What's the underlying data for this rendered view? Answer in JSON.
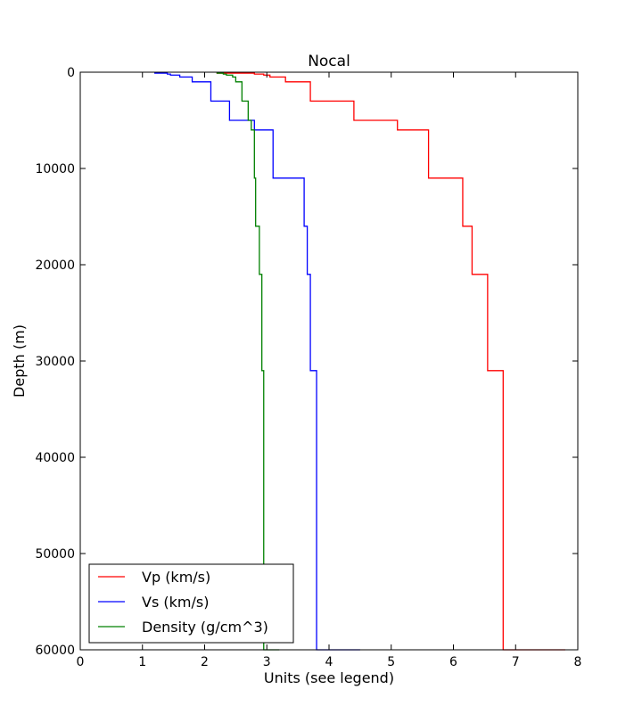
{
  "chart_data": {
    "type": "line",
    "title": "Nocal",
    "xlabel": "Units (see legend)",
    "ylabel": "Depth (m)",
    "xlim": [
      0,
      8
    ],
    "ylim": [
      60000,
      0
    ],
    "y_inverted": true,
    "grid": false,
    "legend_position": "lower-left",
    "x_ticks": [
      "0",
      "1",
      "2",
      "3",
      "4",
      "5",
      "6",
      "7",
      "8"
    ],
    "y_ticks": [
      "0",
      "10000",
      "20000",
      "30000",
      "40000",
      "50000",
      "60000"
    ],
    "series": [
      {
        "name": "Vp (km/s)",
        "color": "#ff0000",
        "step": true,
        "depths": [
          0,
          100,
          200,
          300,
          500,
          1000,
          3000,
          5000,
          6000,
          11000,
          16000,
          21000,
          31000,
          60000
        ],
        "values": [
          2.2,
          2.8,
          2.95,
          3.05,
          3.3,
          3.7,
          4.4,
          5.1,
          5.6,
          6.15,
          6.3,
          6.55,
          6.8,
          7.8
        ]
      },
      {
        "name": "Vs (km/s)",
        "color": "#0000ff",
        "step": true,
        "depths": [
          0,
          100,
          200,
          300,
          500,
          1000,
          3000,
          5000,
          6000,
          11000,
          16000,
          21000,
          31000,
          60000
        ],
        "values": [
          1.2,
          1.4,
          1.45,
          1.6,
          1.8,
          2.1,
          2.4,
          2.8,
          3.1,
          3.6,
          3.65,
          3.7,
          3.8,
          4.5
        ]
      },
      {
        "name": "Density (g/cm^3)",
        "color": "#008000",
        "step": true,
        "depths": [
          0,
          100,
          200,
          300,
          500,
          1000,
          3000,
          5000,
          6000,
          11000,
          16000,
          21000,
          31000,
          60000
        ],
        "values": [
          2.2,
          2.3,
          2.35,
          2.45,
          2.5,
          2.6,
          2.7,
          2.75,
          2.8,
          2.82,
          2.88,
          2.92,
          2.95,
          3.2
        ]
      }
    ]
  }
}
